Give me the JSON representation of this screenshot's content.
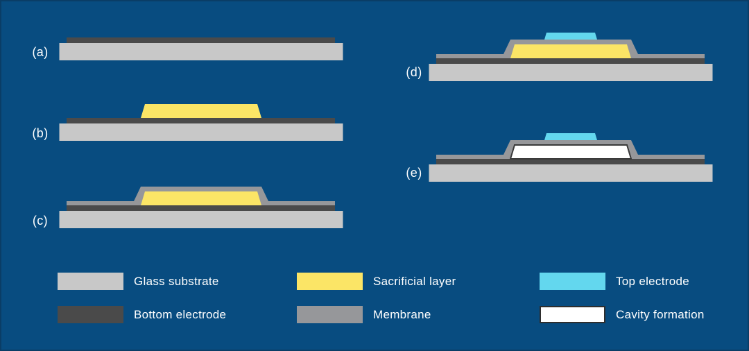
{
  "figure": {
    "background_color": "#084c80",
    "border_color": "#0a3d66",
    "text_color": "#ffffff"
  },
  "colors": {
    "glass_substrate": "#c8c8c8",
    "bottom_electrode": "#4a4a4a",
    "sacrificial_layer": "#fbe566",
    "membrane": "#96979a",
    "top_electrode": "#63d7ee",
    "cavity_formation": "#ffffff",
    "cavity_outline": "#3a3a3a"
  },
  "steps": [
    {
      "label": "(a)",
      "layers": [
        "glass_substrate",
        "bottom_electrode"
      ]
    },
    {
      "label": "(b)",
      "layers": [
        "glass_substrate",
        "bottom_electrode",
        "sacrificial_layer"
      ]
    },
    {
      "label": "(c)",
      "layers": [
        "glass_substrate",
        "bottom_electrode",
        "sacrificial_layer",
        "membrane"
      ]
    },
    {
      "label": "(d)",
      "layers": [
        "glass_substrate",
        "bottom_electrode",
        "sacrificial_layer",
        "membrane",
        "top_electrode"
      ]
    },
    {
      "label": "(e)",
      "layers": [
        "glass_substrate",
        "bottom_electrode",
        "cavity_formation",
        "membrane",
        "top_electrode"
      ]
    }
  ],
  "legend": [
    {
      "label": "Glass substrate",
      "color_key": "glass_substrate",
      "outlined": false
    },
    {
      "label": "Bottom electrode",
      "color_key": "bottom_electrode",
      "outlined": false
    },
    {
      "label": "Sacrificial layer",
      "color_key": "sacrificial_layer",
      "outlined": false
    },
    {
      "label": "Membrane",
      "color_key": "membrane",
      "outlined": false
    },
    {
      "label": "Top electrode",
      "color_key": "top_electrode",
      "outlined": false
    },
    {
      "label": "Cavity formation",
      "color_key": "cavity_formation",
      "outlined": true
    }
  ]
}
